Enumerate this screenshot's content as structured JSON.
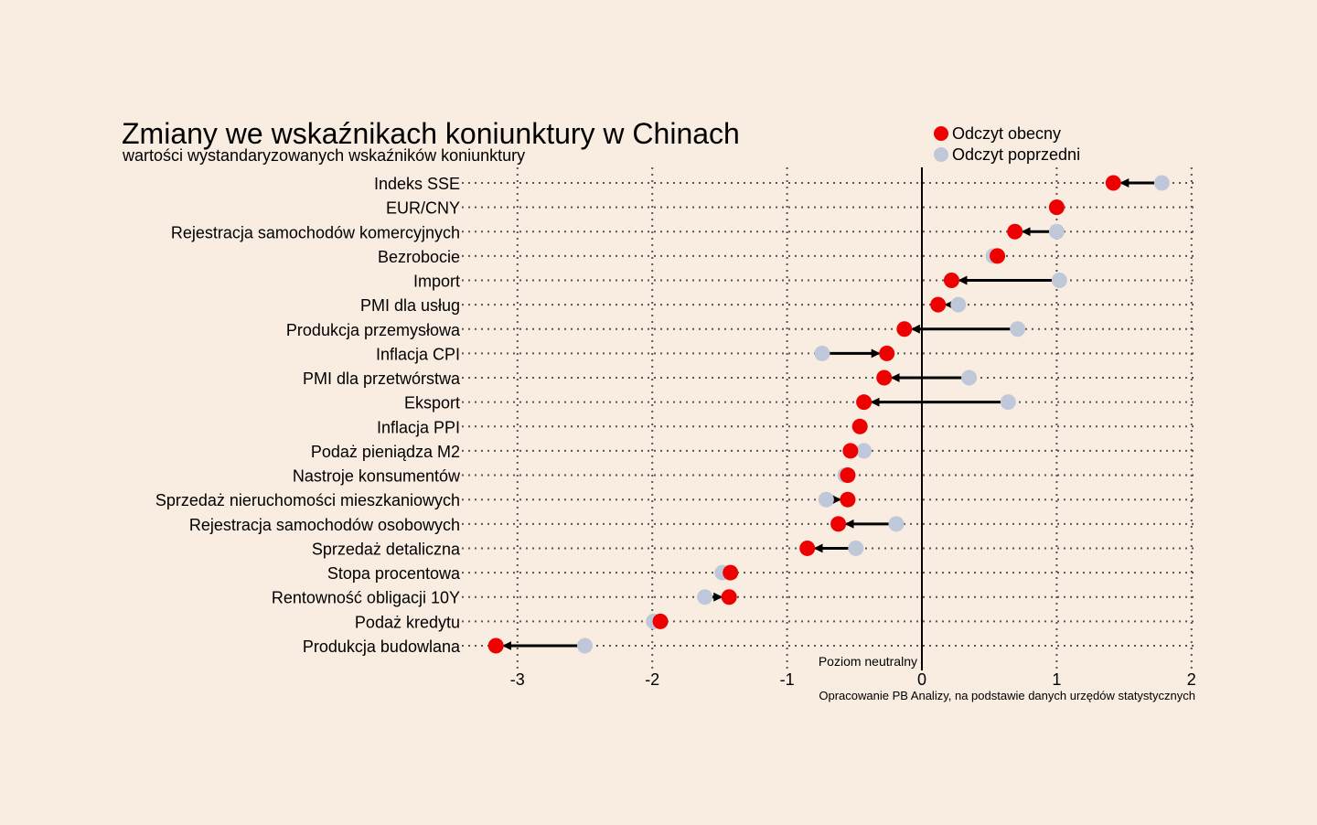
{
  "chart_data": {
    "type": "dumbbell",
    "title": "Zmiany we wskaźnikach koniunktury w Chinach",
    "subtitle": "wartości wystandaryzowanych wskaźników koniunktury",
    "source": "Opracowanie PB Analizy, na podstawie danych urzędów statystycznych",
    "neutral_label": "Poziom neutralny",
    "neutral_value": 0,
    "xlim": [
      -3.3,
      2.0
    ],
    "xticks": [
      -3,
      -2,
      -1,
      0,
      1,
      2
    ],
    "xtick_labels": [
      "-3",
      "-2",
      "-1",
      "0",
      "1",
      "2"
    ],
    "grid": true,
    "legend_position": "top-right",
    "legend": [
      {
        "name": "Odczyt obecny",
        "color": "#ee0000"
      },
      {
        "name": "Odczyt poprzedni",
        "color": "#bfc8d8"
      }
    ],
    "categories": [
      "Indeks SSE",
      "EUR/CNY",
      "Rejestracja samochodów komercyjnych",
      "Bezrobocie",
      "Import",
      "PMI dla usług",
      "Produkcja przemysłowa",
      "Inflacja CPI",
      "PMI dla przetwórstwa",
      "Eksport",
      "Inflacja PPI",
      "Podaż pieniądza M2",
      "Nastroje konsumentów",
      "Sprzedaż nieruchomości mieszkaniowych",
      "Rejestracja samochodów osobowych",
      "Sprzedaż detaliczna",
      "Stopa procentowa",
      "Rentowność obligacji 10Y",
      "Podaż kredytu",
      "Produkcja budowlana"
    ],
    "series": [
      {
        "name": "Odczyt obecny",
        "values": [
          1.42,
          1.0,
          0.69,
          0.56,
          0.22,
          0.12,
          -0.13,
          -0.26,
          -0.28,
          -0.43,
          -0.46,
          -0.53,
          -0.55,
          -0.55,
          -0.62,
          -0.85,
          -1.42,
          -1.43,
          -1.94,
          -3.16
        ]
      },
      {
        "name": "Odczyt poprzedni",
        "values": [
          1.78,
          1.0,
          1.0,
          0.53,
          1.02,
          0.27,
          0.71,
          -0.74,
          0.35,
          0.64,
          -0.46,
          -0.43,
          -0.57,
          -0.71,
          -0.19,
          -0.49,
          -1.48,
          -1.61,
          -1.99,
          -2.5
        ]
      }
    ]
  },
  "colors": {
    "background": "#f9ece0",
    "current": "#ee0000",
    "previous": "#bfc8d8",
    "arrow": "#000000",
    "grid": "#555555"
  }
}
